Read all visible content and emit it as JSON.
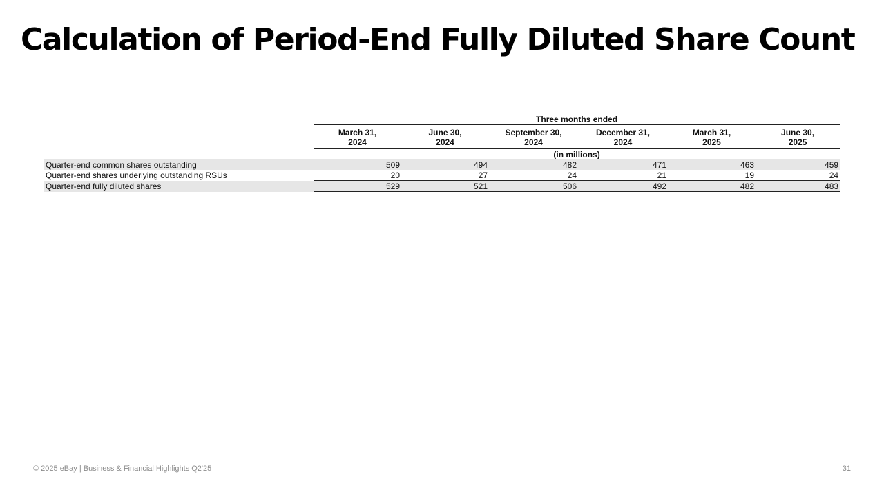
{
  "slide": {
    "title": "Calculation of Period-End Fully Diluted Share Count"
  },
  "table": {
    "group_header": "Three months ended",
    "units": "(in millions)",
    "columns": [
      {
        "line1": "March 31,",
        "line2": "2024"
      },
      {
        "line1": "June 30,",
        "line2": "2024"
      },
      {
        "line1": "September 30,",
        "line2": "2024"
      },
      {
        "line1": "December 31,",
        "line2": "2024"
      },
      {
        "line1": "March 31,",
        "line2": "2025"
      },
      {
        "line1": "June 30,",
        "line2": "2025"
      }
    ],
    "rows": [
      {
        "label": "Quarter-end common shares outstanding",
        "values": [
          "509",
          "494",
          "482",
          "471",
          "463",
          "459"
        ]
      },
      {
        "label": "Quarter-end shares underlying outstanding RSUs",
        "values": [
          "20",
          "27",
          "24",
          "21",
          "19",
          "24"
        ]
      },
      {
        "label": "Quarter-end fully diluted shares",
        "values": [
          "529",
          "521",
          "506",
          "492",
          "482",
          "483"
        ]
      }
    ]
  },
  "footer": {
    "text": "© 2025 eBay | Business & Financial Highlights Q2'25",
    "page_number": "31"
  },
  "colors": {
    "row_shading": "#e6e6e6",
    "footer_text": "#8a8a8a"
  }
}
